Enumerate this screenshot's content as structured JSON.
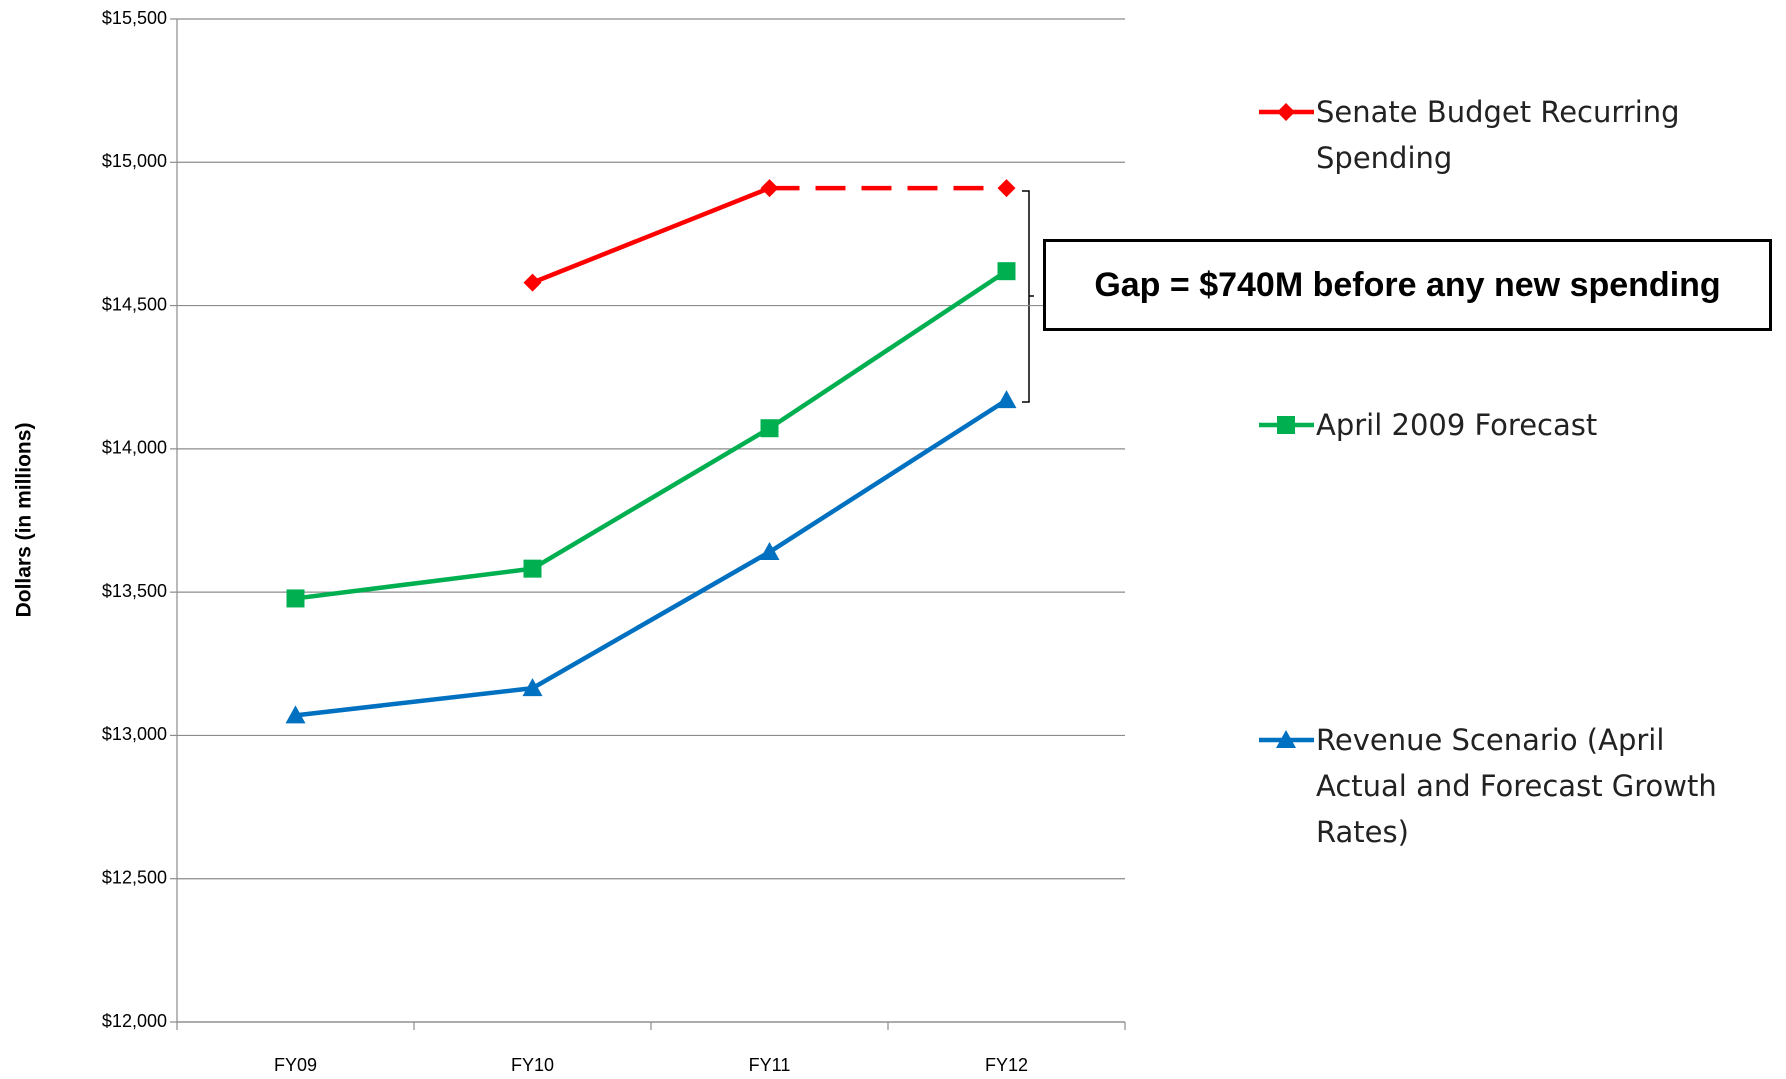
{
  "chart_data": {
    "type": "line",
    "y_label": "Dollars (in millions)",
    "annotation": "Gap = $740M before any new spending",
    "categories": [
      "FY09",
      "FY10",
      "FY11",
      "FY12"
    ],
    "series": [
      {
        "name": "Senate Budget Recurring Spending",
        "color": "#ff0000",
        "marker": "diamond",
        "dashed_from": 2,
        "values": [
          null,
          14580,
          14910,
          14910
        ]
      },
      {
        "name": "April 2009 Forecast",
        "color": "#00b050",
        "marker": "square",
        "values": [
          13478,
          13582,
          14072,
          14620
        ]
      },
      {
        "name": "Revenue Scenario (April Actual and Forecast Growth Rates)",
        "color": "#0070c0",
        "marker": "triangle",
        "values": [
          13070,
          13165,
          13640,
          14170
        ]
      }
    ],
    "ylim": [
      12000,
      15500
    ],
    "yticks": [
      {
        "value": 12000,
        "label": "$12,000"
      },
      {
        "value": 12500,
        "label": "$12,500"
      },
      {
        "value": 13000,
        "label": "$13,000"
      },
      {
        "value": 13500,
        "label": "$13,500"
      },
      {
        "value": 14000,
        "label": "$14,000"
      },
      {
        "value": 14500,
        "label": "$14,500"
      },
      {
        "value": 15000,
        "label": "$15,000"
      },
      {
        "value": 15500,
        "label": "$15,500"
      }
    ],
    "grid": true
  }
}
